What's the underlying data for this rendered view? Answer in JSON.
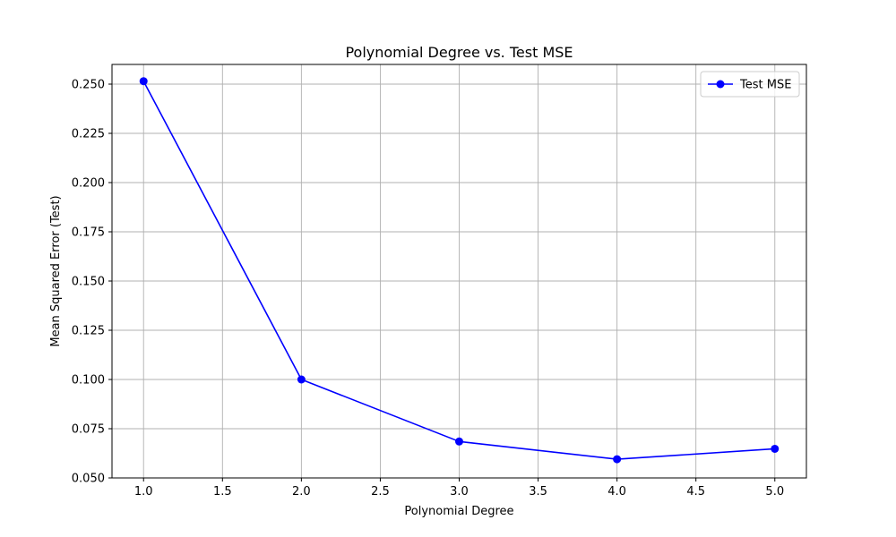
{
  "chart_data": {
    "type": "line",
    "title": "Polynomial Degree vs. Test MSE",
    "xlabel": "Polynomial Degree",
    "ylabel": "Mean Squared Error (Test)",
    "xlim": [
      0.8,
      5.2
    ],
    "ylim": [
      0.05,
      0.26
    ],
    "x_ticks": [
      1.0,
      1.5,
      2.0,
      2.5,
      3.0,
      3.5,
      4.0,
      4.5,
      5.0
    ],
    "x_tick_labels": [
      "1.0",
      "1.5",
      "2.0",
      "2.5",
      "3.0",
      "3.5",
      "4.0",
      "4.5",
      "5.0"
    ],
    "y_ticks": [
      0.05,
      0.075,
      0.1,
      0.125,
      0.15,
      0.175,
      0.2,
      0.225,
      0.25
    ],
    "y_tick_labels": [
      "0.050",
      "0.075",
      "0.100",
      "0.125",
      "0.150",
      "0.175",
      "0.200",
      "0.225",
      "0.250"
    ],
    "grid": true,
    "legend_position": "top-right",
    "series": [
      {
        "name": "Test MSE",
        "color": "#0000ff",
        "marker": "circle",
        "x": [
          1,
          2,
          3,
          4,
          5
        ],
        "y": [
          0.2515,
          0.1,
          0.0685,
          0.0595,
          0.0648
        ]
      }
    ]
  }
}
